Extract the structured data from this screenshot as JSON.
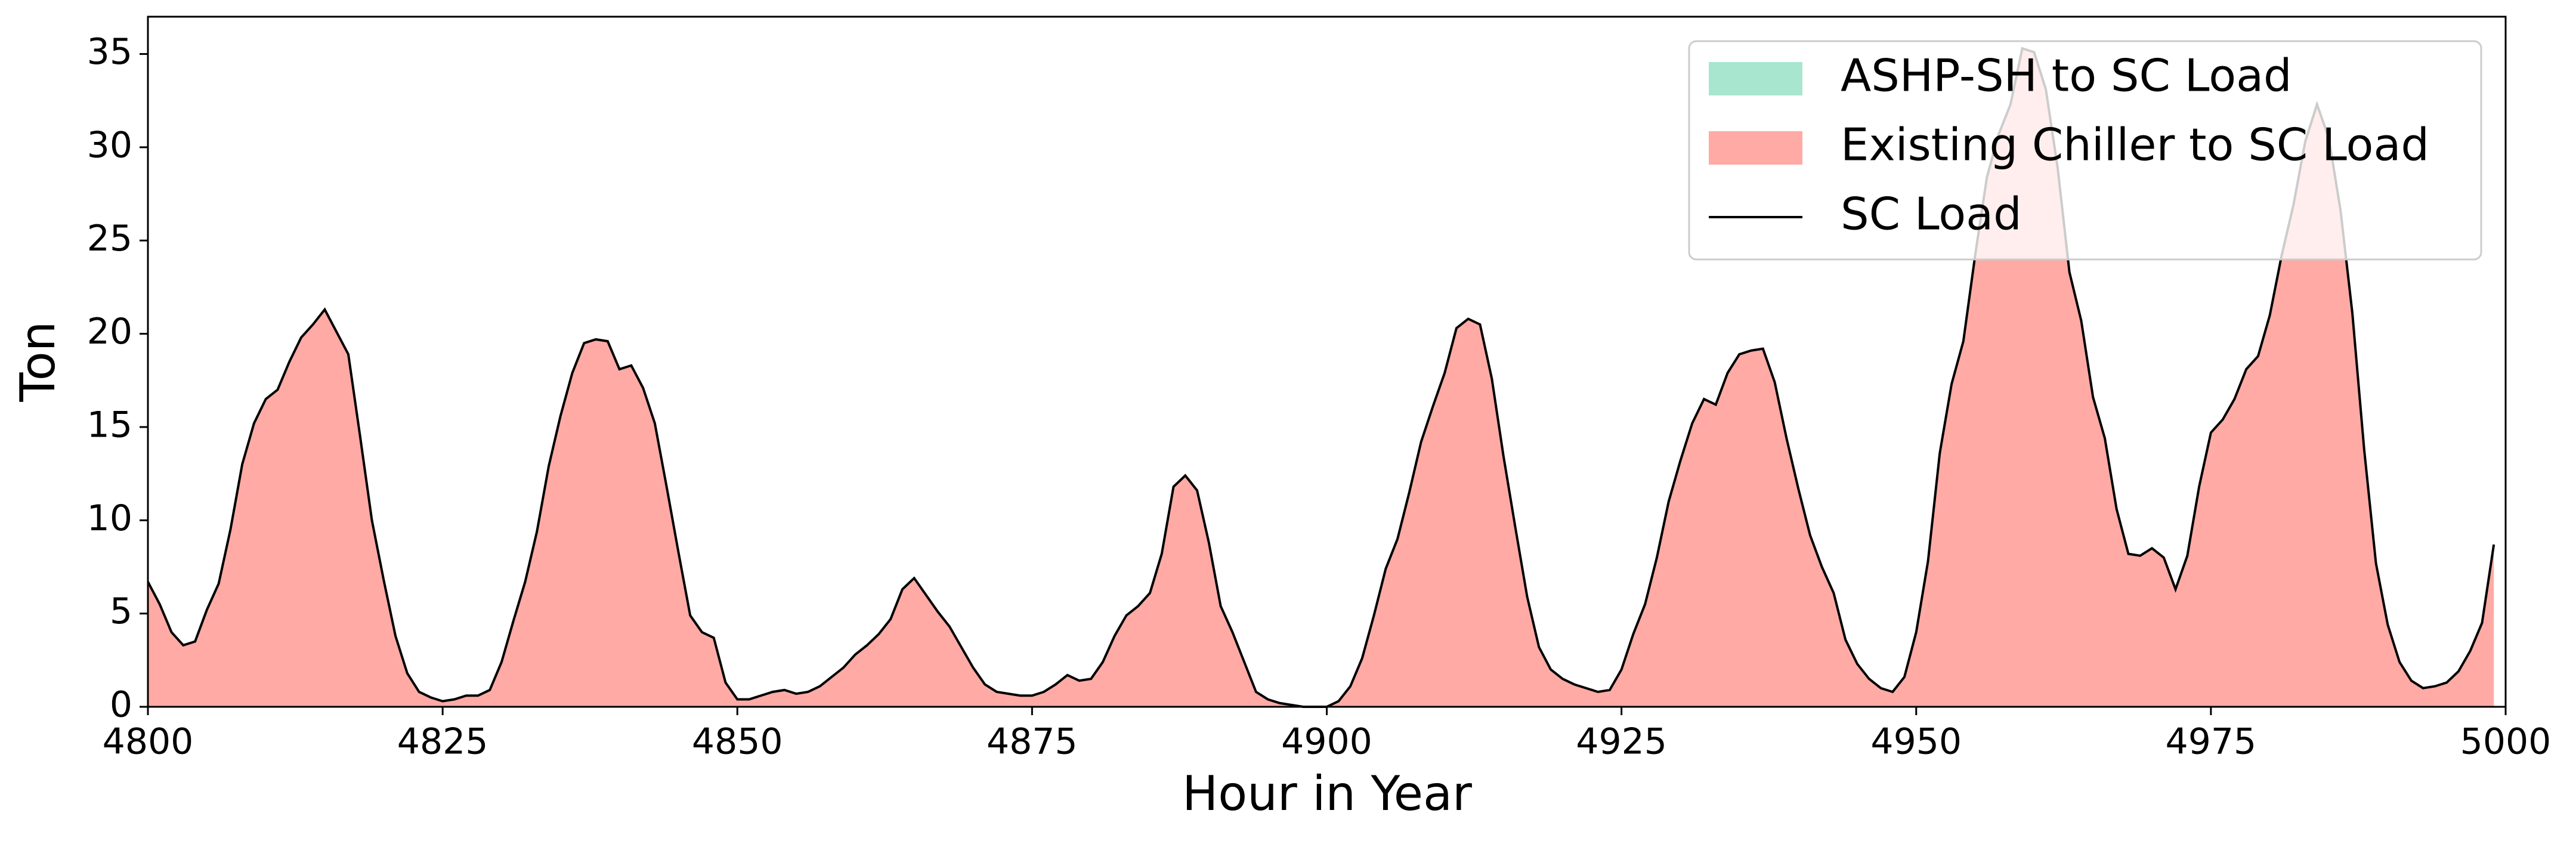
{
  "chart_data": {
    "type": "area",
    "xlabel": "Hour in Year",
    "ylabel": "Ton",
    "xlim": [
      4800,
      5000
    ],
    "xticks": [
      4800,
      4825,
      4850,
      4875,
      4900,
      4925,
      4950,
      4975,
      5000
    ],
    "ylim": [
      0,
      37
    ],
    "yticks": [
      0,
      5,
      10,
      15,
      20,
      25,
      30,
      35
    ],
    "legend": "upper right",
    "stacked": true,
    "x": [
      4800,
      4801,
      4802,
      4803,
      4804,
      4805,
      4806,
      4807,
      4808,
      4809,
      4810,
      4811,
      4812,
      4813,
      4814,
      4815,
      4816,
      4817,
      4818,
      4819,
      4820,
      4821,
      4822,
      4823,
      4824,
      4825,
      4826,
      4827,
      4828,
      4829,
      4830,
      4831,
      4832,
      4833,
      4834,
      4835,
      4836,
      4837,
      4838,
      4839,
      4840,
      4841,
      4842,
      4843,
      4844,
      4845,
      4846,
      4847,
      4848,
      4849,
      4850,
      4851,
      4852,
      4853,
      4854,
      4855,
      4856,
      4857,
      4858,
      4859,
      4860,
      4861,
      4862,
      4863,
      4864,
      4865,
      4866,
      4867,
      4868,
      4869,
      4870,
      4871,
      4872,
      4873,
      4874,
      4875,
      4876,
      4877,
      4878,
      4879,
      4880,
      4881,
      4882,
      4883,
      4884,
      4885,
      4886,
      4887,
      4888,
      4889,
      4890,
      4891,
      4892,
      4893,
      4894,
      4895,
      4896,
      4897,
      4898,
      4899,
      4900,
      4901,
      4902,
      4903,
      4904,
      4905,
      4906,
      4907,
      4908,
      4909,
      4910,
      4911,
      4912,
      4913,
      4914,
      4915,
      4916,
      4917,
      4918,
      4919,
      4920,
      4921,
      4922,
      4923,
      4924,
      4925,
      4926,
      4927,
      4928,
      4929,
      4930,
      4931,
      4932,
      4933,
      4934,
      4935,
      4936,
      4937,
      4938,
      4939,
      4940,
      4941,
      4942,
      4943,
      4944,
      4945,
      4946,
      4947,
      4948,
      4949,
      4950,
      4951,
      4952,
      4953,
      4954,
      4955,
      4956,
      4957,
      4958,
      4959,
      4960,
      4961,
      4962,
      4963,
      4964,
      4965,
      4966,
      4967,
      4968,
      4969,
      4970,
      4971,
      4972,
      4973,
      4974,
      4975,
      4976,
      4977,
      4978,
      4979,
      4980,
      4981,
      4982,
      4983,
      4984,
      4985,
      4986,
      4987,
      4988,
      4989,
      4990,
      4991,
      4992,
      4993,
      4994,
      4995,
      4996,
      4997,
      4998,
      4999
    ],
    "series": [
      {
        "name": "ASHP-SH to SC Load",
        "color": "#a8e6cf",
        "type": "area",
        "values": [
          0,
          0,
          0,
          0,
          0,
          0,
          0,
          0,
          0,
          0,
          0,
          0,
          0,
          0,
          0,
          0,
          0,
          0,
          0,
          0,
          0,
          0,
          0,
          0,
          0,
          0,
          0,
          0,
          0,
          0,
          0,
          0,
          0,
          0,
          0,
          0,
          0,
          0,
          0,
          0,
          0,
          0,
          0,
          0,
          0,
          0,
          0,
          0,
          0,
          0,
          0,
          0,
          0,
          0,
          0,
          0,
          0,
          0,
          0,
          0,
          0,
          0,
          0,
          0,
          0,
          0,
          0,
          0,
          0,
          0,
          0,
          0,
          0,
          0,
          0,
          0,
          0,
          0,
          0,
          0,
          0,
          0,
          0,
          0,
          0,
          0,
          0,
          0,
          0,
          0,
          0,
          0,
          0,
          0,
          0,
          0,
          0,
          0,
          0,
          0,
          0,
          0,
          0,
          0,
          0,
          0,
          0,
          0,
          0,
          0,
          0,
          0,
          0,
          0,
          0,
          0,
          0,
          0,
          0,
          0,
          0,
          0,
          0,
          0,
          0,
          0,
          0,
          0,
          0,
          0,
          0,
          0,
          0,
          0,
          0,
          0,
          0,
          0,
          0,
          0,
          0,
          0,
          0,
          0,
          0,
          0,
          0,
          0,
          0,
          0,
          0,
          0,
          0,
          0,
          0,
          0,
          0,
          0,
          0,
          0,
          0,
          0,
          0,
          0,
          0,
          0,
          0,
          0,
          0,
          0,
          0,
          0,
          0,
          0,
          0,
          0,
          0,
          0,
          0,
          0,
          0,
          0,
          0,
          0,
          0,
          0,
          0,
          0,
          0,
          0,
          0,
          0,
          0,
          0,
          0,
          0,
          0,
          0,
          0,
          0
        ]
      },
      {
        "name": "Existing Chiller to SC Load",
        "color": "#ffaaa5",
        "type": "area",
        "values": [
          6.7,
          5.5,
          4.0,
          3.3,
          3.5,
          5.2,
          6.6,
          9.5,
          13,
          15.2,
          16.5,
          17,
          18.5,
          19.8,
          20.5,
          21.3,
          20.1,
          18.9,
          14.5,
          10,
          6.8,
          3.8,
          1.8,
          0.8,
          0.5,
          0.3,
          0.4,
          0.6,
          0.6,
          0.9,
          2.4,
          4.6,
          6.7,
          9.4,
          12.9,
          15.6,
          17.9,
          19.5,
          19.7,
          19.6,
          18.1,
          18.3,
          17.1,
          15.2,
          11.8,
          8.3,
          4.9,
          4.0,
          3.7,
          1.3,
          0.4,
          0.4,
          0.6,
          0.8,
          0.9,
          0.7,
          0.8,
          1.1,
          1.6,
          2.1,
          2.8,
          3.3,
          3.9,
          4.7,
          6.3,
          6.9,
          6.0,
          5.1,
          4.3,
          3.2,
          2.1,
          1.2,
          0.8,
          0.7,
          0.6,
          0.6,
          0.8,
          1.2,
          1.7,
          1.4,
          1.5,
          2.4,
          3.8,
          4.9,
          5.4,
          6.1,
          8.2,
          11.8,
          12.4,
          11.6,
          8.8,
          5.4,
          4.0,
          2.4,
          0.8,
          0.4,
          0.2,
          0.1,
          0,
          0,
          0,
          0.3,
          1.1,
          2.6,
          4.9,
          7.4,
          9.0,
          11.5,
          14.2,
          16.1,
          17.9,
          20.3,
          20.8,
          20.5,
          17.6,
          13.4,
          9.6,
          5.9,
          3.2,
          2.0,
          1.5,
          1.2,
          1.0,
          0.8,
          0.9,
          2.0,
          3.9,
          5.5,
          8.0,
          11.0,
          13.2,
          15.2,
          16.5,
          16.2,
          17.9,
          18.9,
          19.1,
          19.2,
          17.4,
          14.4,
          11.7,
          9.2,
          7.5,
          6.1,
          3.6,
          2.3,
          1.5,
          1.0,
          0.8,
          1.6,
          4.0,
          7.8,
          13.6,
          17.3,
          19.6,
          24.2,
          28.4,
          30.7,
          32.3,
          35.3,
          35.1,
          33.1,
          28.9,
          23.3,
          20.7,
          16.6,
          14.4,
          10.6,
          8.2,
          8.1,
          8.5,
          8.0,
          6.3,
          8.1,
          11.8,
          14.7,
          15.4,
          16.5,
          18.1,
          18.8,
          21.0,
          24.2,
          26.9,
          30.3,
          32.3,
          30.5,
          26.6,
          21.1,
          13.8,
          7.7,
          4.4,
          2.4,
          1.4,
          1.0,
          1.1,
          1.3,
          1.9,
          3.0,
          4.5,
          8.7
        ]
      },
      {
        "name": "SC Load",
        "color": "#000000",
        "type": "line",
        "values": [
          6.7,
          5.5,
          4.0,
          3.3,
          3.5,
          5.2,
          6.6,
          9.5,
          13,
          15.2,
          16.5,
          17,
          18.5,
          19.8,
          20.5,
          21.3,
          20.1,
          18.9,
          14.5,
          10,
          6.8,
          3.8,
          1.8,
          0.8,
          0.5,
          0.3,
          0.4,
          0.6,
          0.6,
          0.9,
          2.4,
          4.6,
          6.7,
          9.4,
          12.9,
          15.6,
          17.9,
          19.5,
          19.7,
          19.6,
          18.1,
          18.3,
          17.1,
          15.2,
          11.8,
          8.3,
          4.9,
          4.0,
          3.7,
          1.3,
          0.4,
          0.4,
          0.6,
          0.8,
          0.9,
          0.7,
          0.8,
          1.1,
          1.6,
          2.1,
          2.8,
          3.3,
          3.9,
          4.7,
          6.3,
          6.9,
          6.0,
          5.1,
          4.3,
          3.2,
          2.1,
          1.2,
          0.8,
          0.7,
          0.6,
          0.6,
          0.8,
          1.2,
          1.7,
          1.4,
          1.5,
          2.4,
          3.8,
          4.9,
          5.4,
          6.1,
          8.2,
          11.8,
          12.4,
          11.6,
          8.8,
          5.4,
          4.0,
          2.4,
          0.8,
          0.4,
          0.2,
          0.1,
          0,
          0,
          0,
          0.3,
          1.1,
          2.6,
          4.9,
          7.4,
          9.0,
          11.5,
          14.2,
          16.1,
          17.9,
          20.3,
          20.8,
          20.5,
          17.6,
          13.4,
          9.6,
          5.9,
          3.2,
          2.0,
          1.5,
          1.2,
          1.0,
          0.8,
          0.9,
          2.0,
          3.9,
          5.5,
          8.0,
          11.0,
          13.2,
          15.2,
          16.5,
          16.2,
          17.9,
          18.9,
          19.1,
          19.2,
          17.4,
          14.4,
          11.7,
          9.2,
          7.5,
          6.1,
          3.6,
          2.3,
          1.5,
          1.0,
          0.8,
          1.6,
          4.0,
          7.8,
          13.6,
          17.3,
          19.6,
          24.2,
          28.4,
          30.7,
          32.3,
          35.3,
          35.1,
          33.1,
          28.9,
          23.3,
          20.7,
          16.6,
          14.4,
          10.6,
          8.2,
          8.1,
          8.5,
          8.0,
          6.3,
          8.1,
          11.8,
          14.7,
          15.4,
          16.5,
          18.1,
          18.8,
          21.0,
          24.2,
          26.9,
          30.3,
          32.3,
          30.5,
          26.6,
          21.1,
          13.8,
          7.7,
          4.4,
          2.4,
          1.4,
          1.0,
          1.1,
          1.3,
          1.9,
          3.0,
          4.5,
          8.7
        ]
      }
    ]
  }
}
